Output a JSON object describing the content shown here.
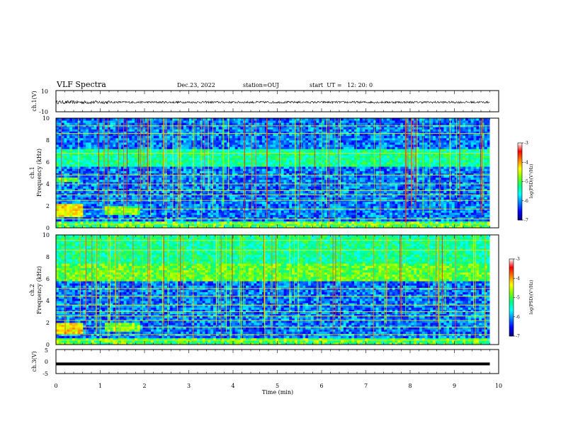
{
  "header": {
    "title": "VLF Spectra",
    "date": "Dec.23, 2022",
    "station": "station=OUJ",
    "start_ut": "start  UT =   12: 20: 0"
  },
  "chart_data": [
    {
      "type": "line",
      "id": "ch1-waveform",
      "ylabel": "ch.1(V)",
      "ylim": [
        -10,
        10
      ],
      "yticks": [
        "10",
        "-10"
      ],
      "xlim": [
        0,
        10
      ],
      "description_value": "noise around -1 V, amplitude about 1 V",
      "series": [
        {
          "x_range": [
            0,
            9.8
          ],
          "mean": -1.0,
          "amplitude": 1.0
        }
      ]
    },
    {
      "type": "heatmap",
      "id": "ch1-spectrogram",
      "ylabel_top": "ch.1",
      "ylabel": "Frequency (kHz)",
      "ylim": [
        0,
        10
      ],
      "yticks": [
        "0",
        "2",
        "4",
        "6",
        "8",
        "10"
      ],
      "xlim": [
        0,
        10
      ],
      "colorbar": {
        "label": "log(PSD)(V²/Hz)",
        "range": [
          -7,
          -3
        ],
        "ticks": [
          "-3",
          "-4",
          "-5",
          "-6",
          "-7"
        ]
      },
      "bands": [
        {
          "f": [
            5.6,
            7.2
          ],
          "level": -5.3
        },
        {
          "f": [
            1.0,
            2.2
          ],
          "t": [
            0,
            0.6
          ],
          "level": -4.3
        },
        {
          "f": [
            1.2,
            2.0
          ],
          "t": [
            1.1,
            1.9
          ],
          "level": -4.8
        },
        {
          "f": [
            4.2,
            4.6
          ],
          "t": [
            0,
            0.5
          ],
          "level": -4.8
        }
      ],
      "lines_kHz": [
        0.35,
        0.8,
        1.7,
        2.5,
        3.0,
        3.4,
        4.0,
        4.8,
        6.8,
        8.6,
        9.3
      ]
    },
    {
      "type": "heatmap",
      "id": "ch2-spectrogram",
      "ylabel_top": "ch.2",
      "ylabel": "Frequency (kHz)",
      "ylim": [
        0,
        10
      ],
      "yticks": [
        "0",
        "2",
        "4",
        "6",
        "8",
        "10"
      ],
      "xlim": [
        0,
        10
      ],
      "colorbar": {
        "label": "log(PSD)(V²/Hz)",
        "range": [
          -7,
          -3
        ],
        "ticks": [
          "-3",
          "-4",
          "-5",
          "-6",
          "-7"
        ]
      },
      "bands": [
        {
          "f": [
            5.8,
            7.4
          ],
          "level": -4.9
        },
        {
          "f": [
            7.4,
            10.0
          ],
          "level": -5.3
        },
        {
          "f": [
            1.0,
            2.0
          ],
          "t": [
            0,
            0.6
          ],
          "level": -4.3
        },
        {
          "f": [
            1.2,
            2.0
          ],
          "t": [
            1.1,
            1.9
          ],
          "level": -4.8
        }
      ],
      "lines_kHz": [
        0.4,
        0.9,
        1.6,
        2.2,
        2.6,
        3.0,
        3.6,
        4.4,
        5.1,
        8.6,
        9.5
      ]
    },
    {
      "type": "line",
      "id": "ch3-waveform",
      "ylabel": "ch.3(V)",
      "ylim": [
        -5,
        5
      ],
      "yticks": [
        "5",
        "0",
        "-5"
      ],
      "xlim": [
        0,
        10
      ],
      "xlabel": "Time (min)",
      "xticks": [
        "0",
        "1",
        "2",
        "3",
        "4",
        "5",
        "6",
        "7",
        "8",
        "9",
        "10"
      ],
      "series": [
        {
          "x_range": [
            0,
            9.8
          ],
          "value": -1.0
        }
      ]
    }
  ],
  "colors": {
    "scale": [
      "#000080",
      "#0000ff",
      "#0080ff",
      "#00ffff",
      "#00ff80",
      "#80ff00",
      "#ffff00",
      "#ff8000",
      "#ff0000",
      "#ffffff"
    ]
  }
}
